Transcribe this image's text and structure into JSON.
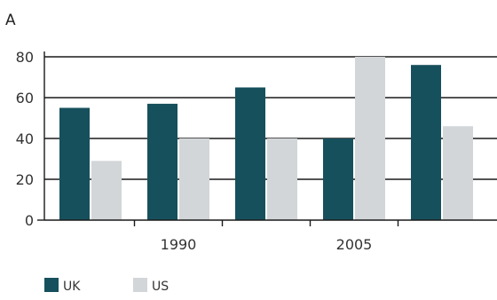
{
  "panel_label": "A",
  "chart_data": {
    "type": "bar",
    "categories": [
      "",
      "1990",
      "",
      "2005",
      ""
    ],
    "series": [
      {
        "name": "UK",
        "values": [
          55,
          57,
          65,
          40,
          76
        ],
        "color": "#16505c"
      },
      {
        "name": "US",
        "values": [
          29,
          40,
          40,
          80,
          46
        ],
        "color": "#d2d6d8"
      }
    ],
    "ylim": [
      0,
      80
    ],
    "yticks": [
      0,
      20,
      40,
      60,
      80
    ],
    "grid": true,
    "legend_placement": "bottom-left",
    "xlabel": "",
    "ylabel": ""
  }
}
